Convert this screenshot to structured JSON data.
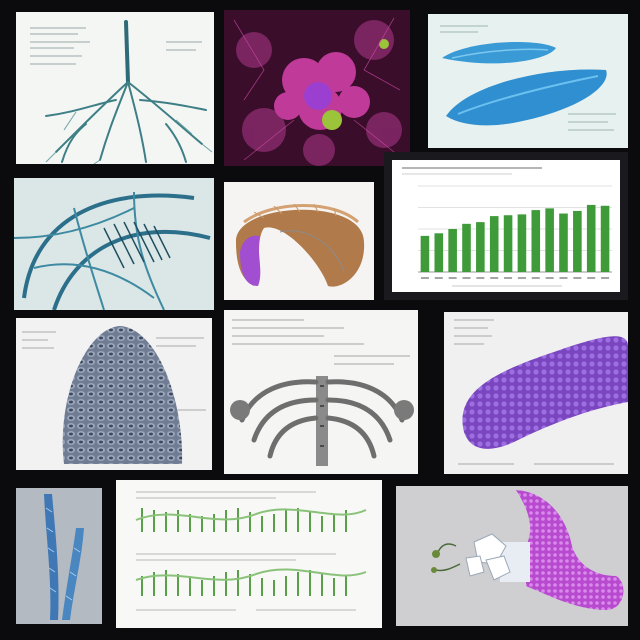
{
  "gallery": {
    "background": "#0b0b0d",
    "tiles": [
      {
        "subject": "branching-root-vessel-icon"
      },
      {
        "subject": "magenta-cell-cluster-icon"
      },
      {
        "subject": "blue-leaf-organ-icon"
      },
      {
        "subject": "blue-vascular-mesh-icon"
      },
      {
        "subject": "horseshoe-organ-icon"
      },
      {
        "subject": "bar-chart"
      },
      {
        "subject": "scaly-cone-structure-icon"
      },
      {
        "subject": "ribcage-skeleton-icon"
      },
      {
        "subject": "purple-worm-organ-icon"
      },
      {
        "subject": "blue-tubule-pair-icon"
      },
      {
        "subject": "green-waveform-diagram-icon"
      },
      {
        "subject": "purple-tube-with-crystal-icon"
      }
    ]
  },
  "chart_data": {
    "type": "bar",
    "values": [
      0.42,
      0.45,
      0.5,
      0.56,
      0.58,
      0.65,
      0.66,
      0.67,
      0.72,
      0.74,
      0.68,
      0.71,
      0.78,
      0.77
    ],
    "bar_color": "#3f9a3a",
    "ylim": [
      0,
      1
    ],
    "grid": true
  }
}
